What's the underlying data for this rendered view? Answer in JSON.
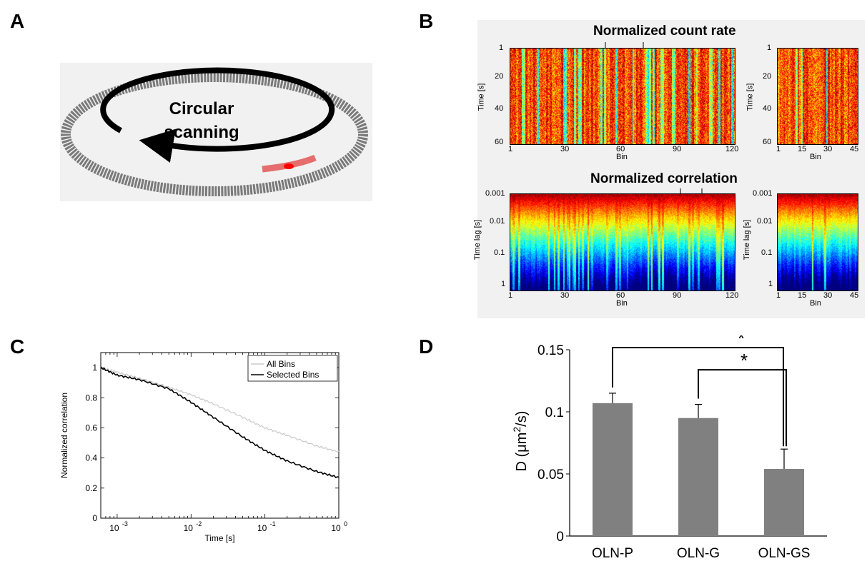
{
  "panel_labels": {
    "a": "A",
    "b": "B",
    "c": "C",
    "d": "D"
  },
  "panel_a": {
    "line1": "Circular",
    "line2": "scanning"
  },
  "panel_b": {
    "title_count": "Normalized count rate",
    "title_corr": "Normalized correlation",
    "xlabel": "Bin",
    "ylabel_count": "Time [s]",
    "ylabel_corr": "Time lag [s]",
    "count_left_yticks": [
      "1",
      "20",
      "40",
      "60"
    ],
    "count_left_xticks": [
      "1",
      "30",
      "60",
      "90",
      "120"
    ],
    "count_right_yticks": [
      "1",
      "20",
      "40",
      "60"
    ],
    "count_right_xticks": [
      "1",
      "15",
      "30",
      "45"
    ],
    "corr_left_yticks": [
      "0.001",
      "0.01",
      "0.1",
      "1"
    ],
    "corr_left_xticks": [
      "1",
      "30",
      "60",
      "90",
      "120"
    ],
    "corr_right_yticks": [
      "0.001",
      "0.01",
      "0.1",
      "1"
    ],
    "corr_right_xticks": [
      "1",
      "15",
      "30",
      "45"
    ]
  },
  "chart_data": [
    {
      "type": "line",
      "panel": "C",
      "xlabel": "Time [s]",
      "ylabel": "Normalized correlation",
      "xscale": "log",
      "xlim": [
        0.0006,
        1
      ],
      "ylim": [
        0,
        1.1
      ],
      "xtick_bases": [
        "10",
        "10",
        "10",
        "10"
      ],
      "xtick_exps": [
        "-3",
        "-2",
        "-1",
        "0"
      ],
      "ytick_labels": [
        "0",
        "0.2",
        "0.4",
        "0.6",
        "0.8",
        "1"
      ],
      "legend_position": "top-right",
      "series": [
        {
          "name": "All Bins",
          "color": "#c8c8c8",
          "x": [
            0.0006,
            0.001,
            0.002,
            0.005,
            0.01,
            0.02,
            0.05,
            0.1,
            0.2,
            0.5,
            1
          ],
          "y": [
            1.0,
            0.97,
            0.93,
            0.87,
            0.82,
            0.76,
            0.67,
            0.6,
            0.55,
            0.48,
            0.44
          ]
        },
        {
          "name": "Selected Bins",
          "color": "#000000",
          "x": [
            0.0006,
            0.001,
            0.002,
            0.005,
            0.01,
            0.02,
            0.05,
            0.1,
            0.2,
            0.5,
            1
          ],
          "y": [
            1.0,
            0.95,
            0.92,
            0.86,
            0.77,
            0.67,
            0.54,
            0.45,
            0.38,
            0.31,
            0.27
          ]
        }
      ]
    },
    {
      "type": "bar",
      "panel": "D",
      "categories": [
        "OLN-P",
        "OLN-G",
        "OLN-GS"
      ],
      "values": [
        0.107,
        0.095,
        0.054
      ],
      "errors": [
        0.008,
        0.011,
        0.016
      ],
      "ylabel_main": "D (μm",
      "ylabel_sup": "2",
      "ylabel_tail": "/s)",
      "ylim": [
        0,
        0.15
      ],
      "ytick_labels": [
        "0",
        "0.05",
        "0.1",
        "0.15"
      ],
      "bar_color": "#808080",
      "significance": [
        "*",
        "*"
      ]
    }
  ]
}
